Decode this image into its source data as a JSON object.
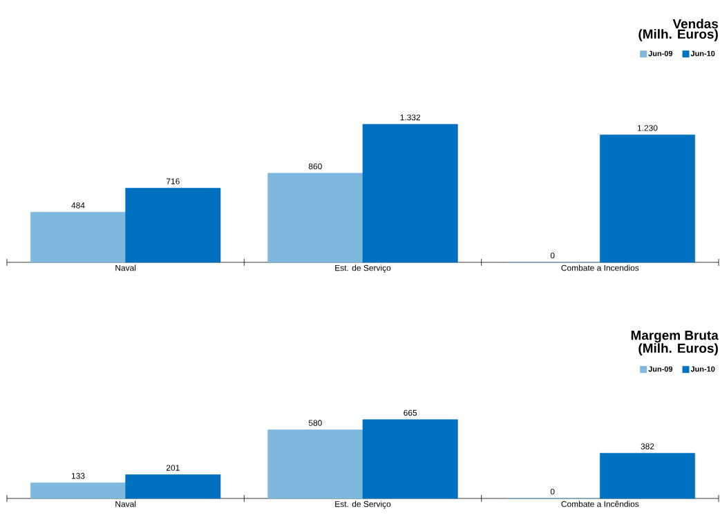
{
  "chart_data": [
    {
      "type": "bar",
      "title": "Vendas",
      "subtitle": "(Milh. Euros)",
      "categories": [
        "Naval",
        "Est. de Serviço",
        "Combate a Incendios"
      ],
      "legend": "top right",
      "series": [
        {
          "name": "Jun-09",
          "color": "#7fb8de",
          "values": [
            484,
            860,
            0
          ],
          "value_labels": [
            "484",
            "860",
            "0"
          ]
        },
        {
          "name": "Jun-10",
          "color": "#0070c0",
          "values": [
            716,
            1332,
            1230
          ],
          "value_labels": [
            "716",
            "1.332",
            "1.230"
          ]
        }
      ]
    },
    {
      "type": "bar",
      "title": "Margem Bruta",
      "subtitle": "(Milh. Euros)",
      "categories": [
        "Naval",
        "Est. de Serviço",
        "Combate a Incêndios"
      ],
      "legend": "top right",
      "series": [
        {
          "name": "Jun-09",
          "color": "#7fb8de",
          "values": [
            133,
            580,
            0
          ],
          "value_labels": [
            "133",
            "580",
            "0"
          ]
        },
        {
          "name": "Jun-10",
          "color": "#0070c0",
          "values": [
            201,
            665,
            382
          ],
          "value_labels": [
            "201",
            "665",
            "382"
          ]
        }
      ]
    }
  ]
}
